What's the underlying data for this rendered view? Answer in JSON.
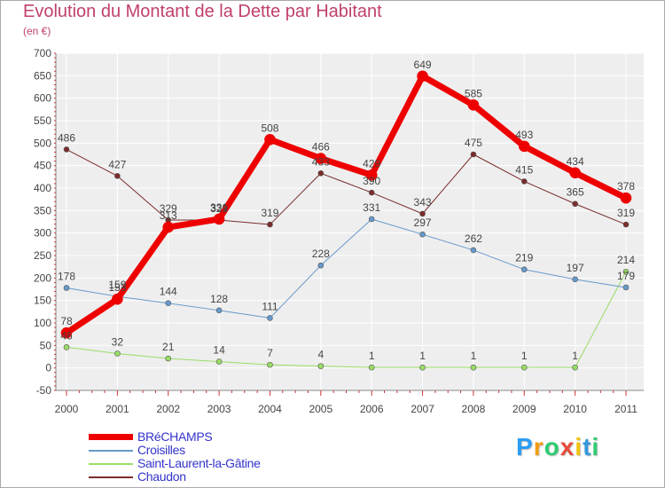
{
  "header": {
    "title": "Evolution du Montant de la Dette par Habitant",
    "unit": "(en €)"
  },
  "logo": {
    "letters": [
      "P",
      "r",
      "o",
      "x",
      "i",
      "t",
      "i"
    ],
    "colors": [
      "#2a9df4",
      "#f39c12",
      "#2ecc71",
      "#e74c3c",
      "#f1c40f",
      "#3498db",
      "#2ecc71"
    ]
  },
  "chart_data": {
    "type": "line",
    "x": [
      "2000",
      "2001",
      "2002",
      "2003",
      "2004",
      "2005",
      "2006",
      "2007",
      "2008",
      "2009",
      "2010",
      "2011"
    ],
    "ylim": [
      -50,
      700
    ],
    "yticks": [
      -50,
      0,
      50,
      100,
      150,
      200,
      250,
      300,
      350,
      400,
      450,
      500,
      550,
      600,
      650,
      700
    ],
    "grid": true,
    "legend_position": "bottom-left",
    "series": [
      {
        "name": "Chaudon",
        "color": "#7b2c2c",
        "width": 1,
        "values": [
          486,
          427,
          329,
          329,
          319,
          433,
          390,
          343,
          475,
          415,
          365,
          319
        ]
      },
      {
        "name": "Saint-Laurent-la-Gâtine",
        "color": "#99dd66",
        "width": 1,
        "values": [
          46,
          32,
          21,
          14,
          7,
          4,
          1,
          1,
          1,
          1,
          1,
          214
        ]
      },
      {
        "name": "Croisilles",
        "color": "#6699cc",
        "width": 1,
        "values": [
          178,
          159,
          144,
          128,
          111,
          228,
          331,
          297,
          262,
          219,
          197,
          179
        ]
      },
      {
        "name": "BRéCHAMPS",
        "color": "#ee0000",
        "width": 7,
        "values": [
          78,
          153,
          313,
          331,
          508,
          466,
          429,
          649,
          585,
          493,
          434,
          378
        ]
      }
    ]
  },
  "legend": {
    "items": [
      {
        "label": "BRéCHAMPS",
        "color": "#ee0000",
        "width": 7
      },
      {
        "label": "Croisilles",
        "color": "#6699cc",
        "width": 2
      },
      {
        "label": "Saint-Laurent-la-Gâtine",
        "color": "#99dd66",
        "width": 2
      },
      {
        "label": "Chaudon",
        "color": "#7b2c2c",
        "width": 2
      }
    ]
  }
}
